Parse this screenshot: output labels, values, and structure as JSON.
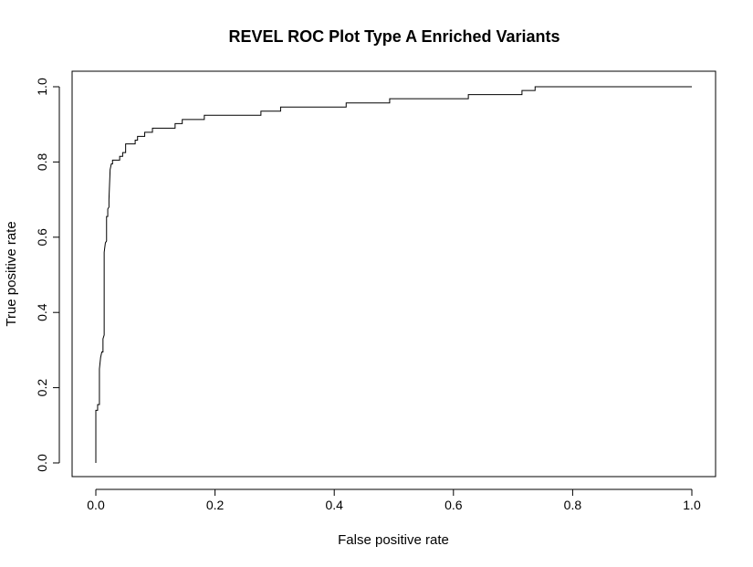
{
  "chart_data": {
    "type": "line",
    "title": "REVEL ROC Plot Type A Enriched Variants",
    "xlabel": "False positive rate",
    "ylabel": "True positive rate",
    "xlim": [
      0,
      1
    ],
    "ylim": [
      0,
      1
    ],
    "x_ticks": [
      "0.0",
      "0.2",
      "0.4",
      "0.6",
      "0.8",
      "1.0"
    ],
    "y_ticks": [
      "0.0",
      "0.2",
      "0.4",
      "0.6",
      "0.8",
      "1.0"
    ],
    "grid": false,
    "legend": "none",
    "series": [
      {
        "color": "#000000",
        "points": [
          [
            0.0,
            0.0
          ],
          [
            0.0,
            0.14
          ],
          [
            0.003,
            0.14
          ],
          [
            0.003,
            0.155
          ],
          [
            0.006,
            0.155
          ],
          [
            0.006,
            0.25
          ],
          [
            0.008,
            0.28
          ],
          [
            0.01,
            0.295
          ],
          [
            0.012,
            0.295
          ],
          [
            0.012,
            0.33
          ],
          [
            0.014,
            0.34
          ],
          [
            0.014,
            0.56
          ],
          [
            0.016,
            0.585
          ],
          [
            0.018,
            0.59
          ],
          [
            0.018,
            0.655
          ],
          [
            0.02,
            0.655
          ],
          [
            0.02,
            0.675
          ],
          [
            0.022,
            0.68
          ],
          [
            0.022,
            0.7
          ],
          [
            0.024,
            0.78
          ],
          [
            0.026,
            0.795
          ],
          [
            0.028,
            0.795
          ],
          [
            0.028,
            0.805
          ],
          [
            0.04,
            0.805
          ],
          [
            0.04,
            0.815
          ],
          [
            0.045,
            0.815
          ],
          [
            0.045,
            0.825
          ],
          [
            0.05,
            0.825
          ],
          [
            0.05,
            0.848
          ],
          [
            0.066,
            0.848
          ],
          [
            0.066,
            0.858
          ],
          [
            0.07,
            0.858
          ],
          [
            0.07,
            0.868
          ],
          [
            0.082,
            0.868
          ],
          [
            0.082,
            0.879
          ],
          [
            0.095,
            0.879
          ],
          [
            0.095,
            0.89
          ],
          [
            0.133,
            0.89
          ],
          [
            0.133,
            0.902
          ],
          [
            0.145,
            0.902
          ],
          [
            0.145,
            0.913
          ],
          [
            0.182,
            0.913
          ],
          [
            0.182,
            0.924
          ],
          [
            0.277,
            0.924
          ],
          [
            0.277,
            0.935
          ],
          [
            0.31,
            0.935
          ],
          [
            0.31,
            0.946
          ],
          [
            0.42,
            0.946
          ],
          [
            0.42,
            0.957
          ],
          [
            0.493,
            0.957
          ],
          [
            0.493,
            0.968
          ],
          [
            0.625,
            0.968
          ],
          [
            0.625,
            0.979
          ],
          [
            0.715,
            0.979
          ],
          [
            0.715,
            0.99
          ],
          [
            0.737,
            0.99
          ],
          [
            0.737,
            1.0
          ],
          [
            1.0,
            1.0
          ]
        ]
      }
    ]
  }
}
